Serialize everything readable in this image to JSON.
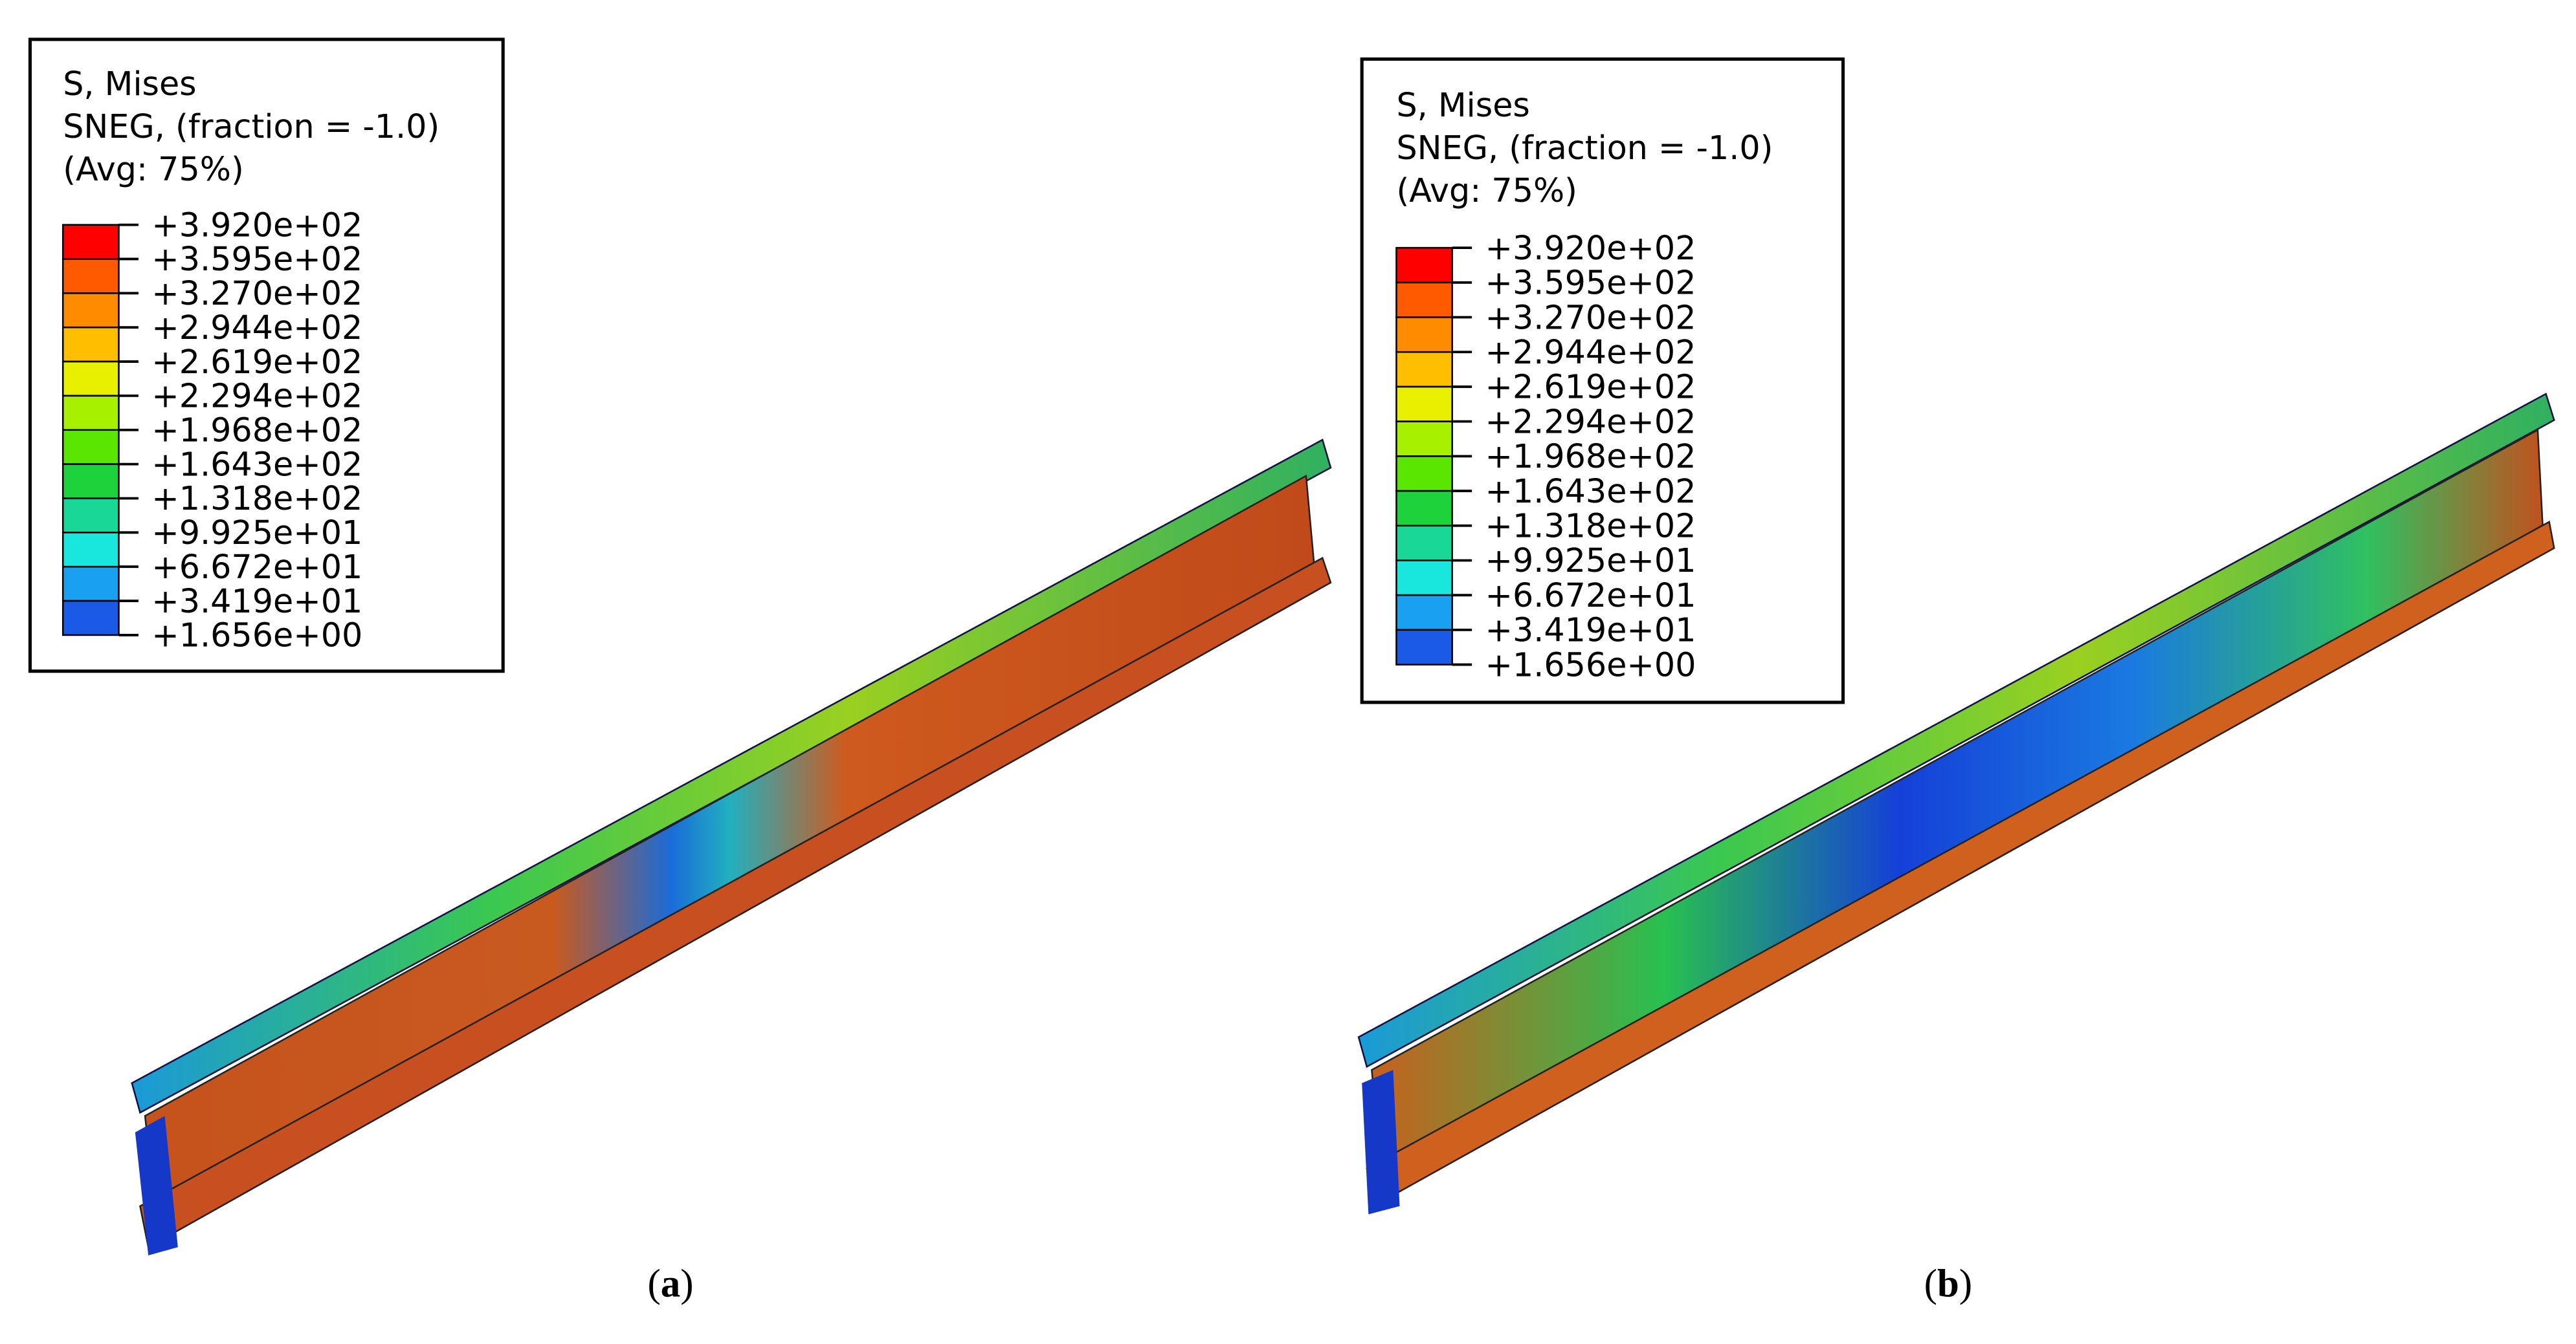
{
  "panels": [
    {
      "legend": {
        "title": [
          "S, Mises",
          "SNEG, (fraction = -1.0)",
          "(Avg: 75%)"
        ],
        "values": [
          "+3.920e+02",
          "+3.595e+02",
          "+3.270e+02",
          "+2.944e+02",
          "+2.619e+02",
          "+2.294e+02",
          "+1.968e+02",
          "+1.643e+02",
          "+1.318e+02",
          "+9.925e+01",
          "+6.672e+01",
          "+3.419e+01",
          "+1.656e+00"
        ]
      },
      "caption": [
        "(",
        "a",
        ")"
      ]
    },
    {
      "legend": {
        "title": [
          "S, Mises",
          "SNEG, (fraction = -1.0)",
          "(Avg: 75%)"
        ],
        "values": [
          "+3.920e+02",
          "+3.595e+02",
          "+3.270e+02",
          "+2.944e+02",
          "+2.619e+02",
          "+2.294e+02",
          "+1.968e+02",
          "+1.643e+02",
          "+1.318e+02",
          "+9.925e+01",
          "+6.672e+01",
          "+3.419e+01",
          "+1.656e+00"
        ]
      },
      "caption": [
        "(",
        "b",
        ")"
      ]
    }
  ]
}
